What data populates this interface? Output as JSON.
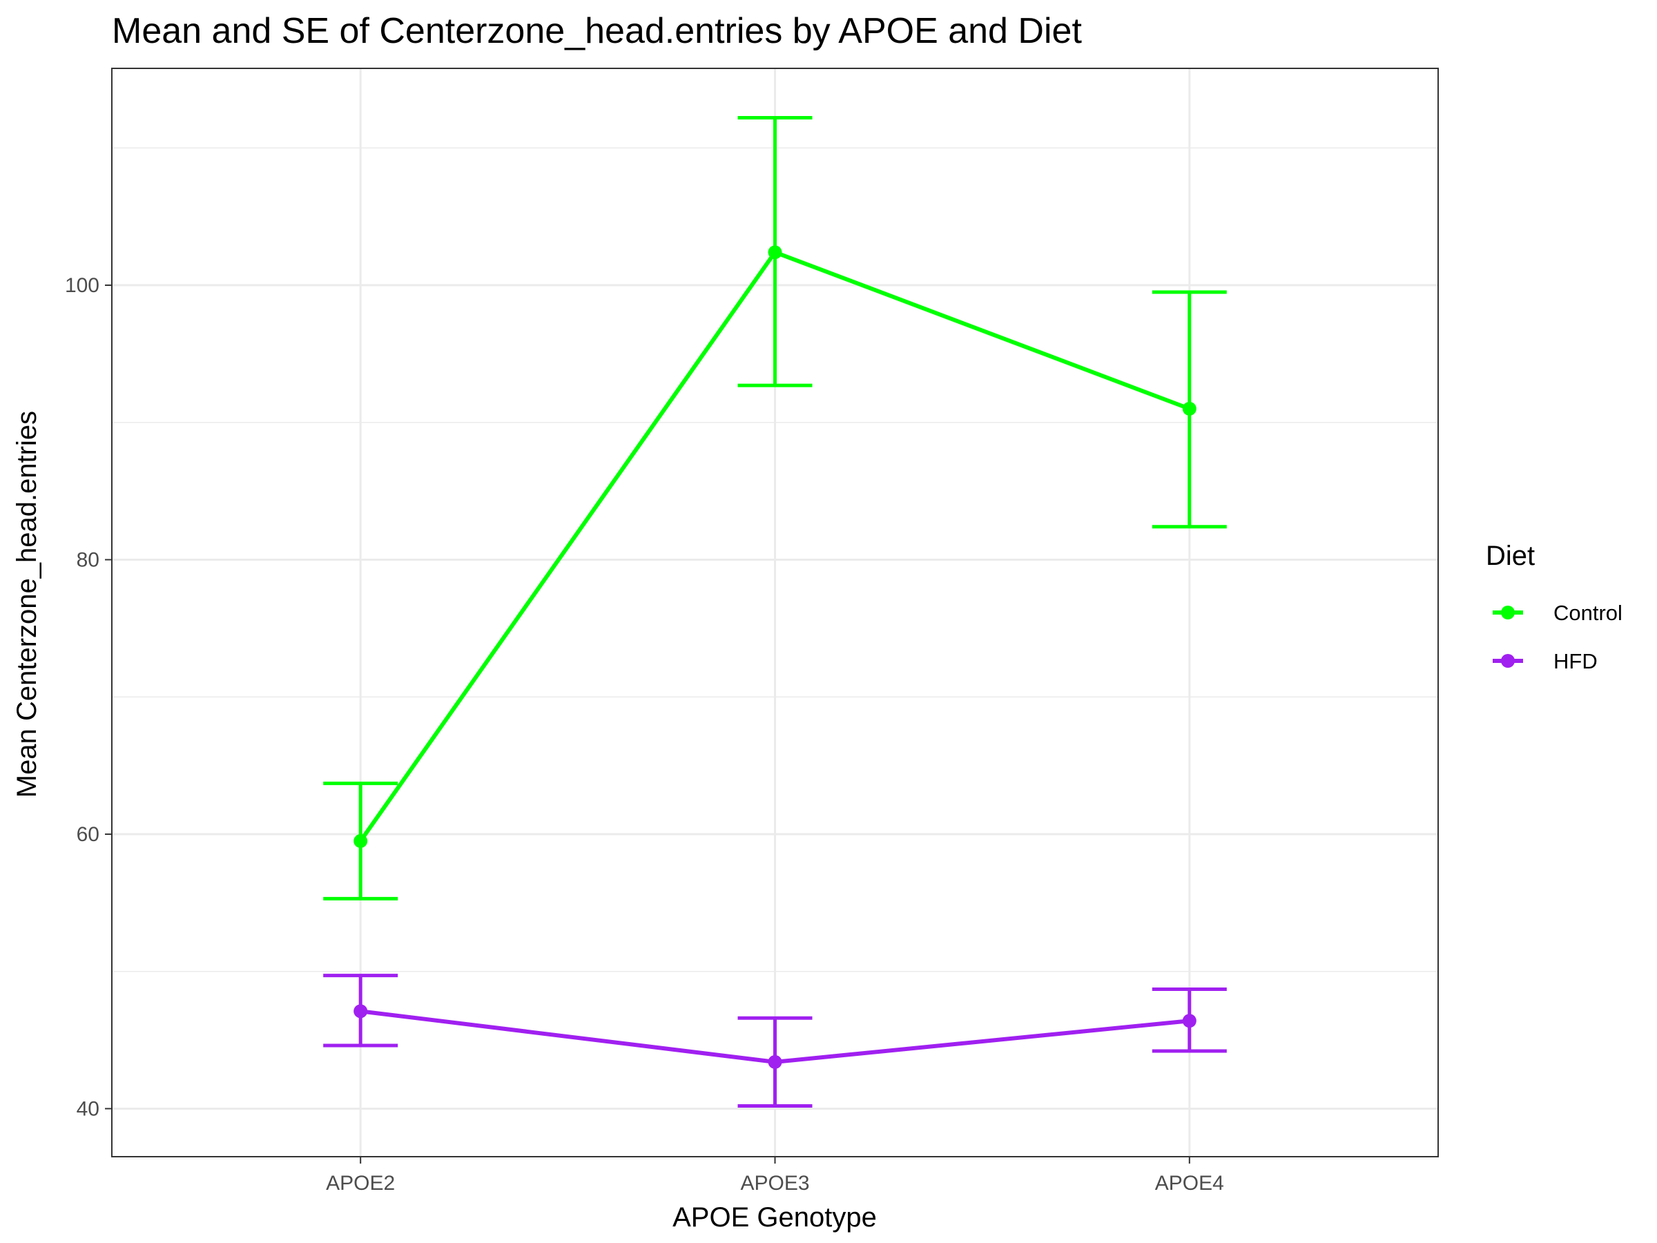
{
  "chart_data": {
    "type": "line",
    "title": "Mean and SE of Centerzone_head.entries by APOE and Diet",
    "xlabel": "APOE Genotype",
    "ylabel": "Mean Centerzone_head.entries",
    "categories": [
      "APOE2",
      "APOE3",
      "APOE4"
    ],
    "ylim": [
      36.5,
      115.8
    ],
    "yticks": [
      40,
      60,
      80,
      100
    ],
    "grid": true,
    "legend": {
      "title": "Diet",
      "position": "right"
    },
    "series": [
      {
        "name": "Control",
        "color": "#00ff00",
        "values": [
          59.5,
          102.4,
          91.0
        ],
        "se_lower": [
          55.3,
          92.7,
          82.4
        ],
        "se_upper": [
          63.7,
          112.2,
          99.5
        ]
      },
      {
        "name": "HFD",
        "color": "#a020f0",
        "values": [
          47.1,
          43.4,
          46.4
        ],
        "se_lower": [
          44.6,
          40.2,
          44.2
        ],
        "se_upper": [
          49.7,
          46.6,
          48.7
        ]
      }
    ]
  }
}
